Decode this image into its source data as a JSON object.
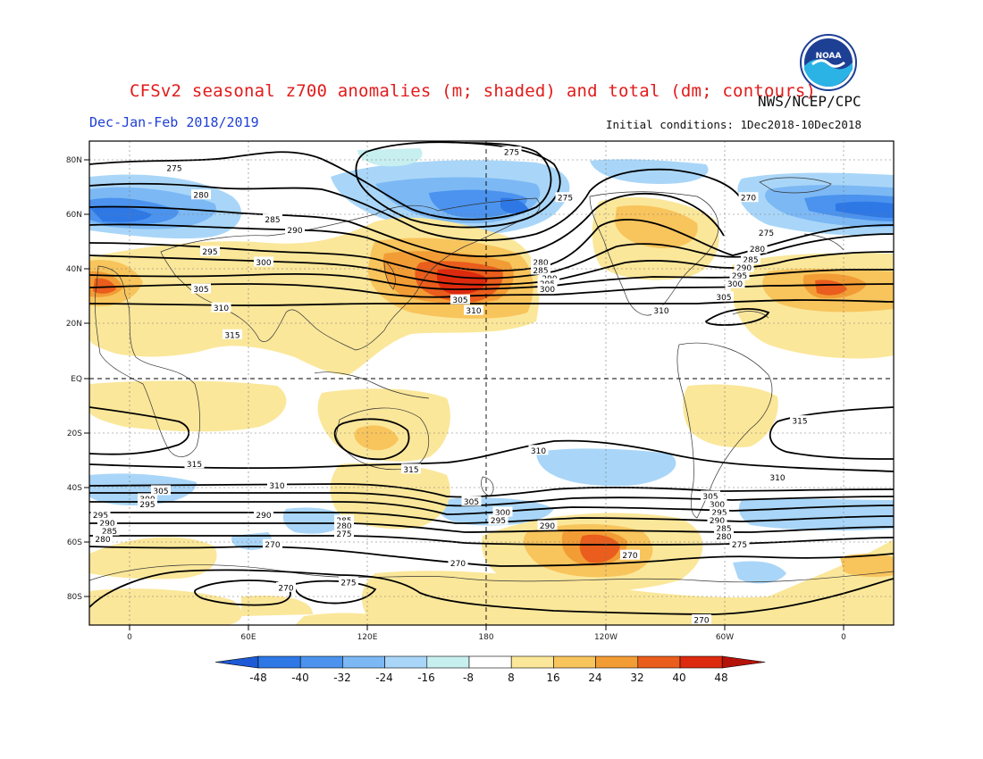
{
  "title": "CFSv2 seasonal z700 anomalies (m; shaded) and total (dm; contours)",
  "season": "Dec-Jan-Feb 2018/2019",
  "agency": "NWS/NCEP/CPC",
  "initial_conditions": "Initial conditions: 1Dec2018-10Dec2018",
  "logo_text": "NOAA",
  "lat_labels": [
    "80N",
    "60N",
    "40N",
    "20N",
    "EQ",
    "20S",
    "40S",
    "60S",
    "80S"
  ],
  "lon_labels": [
    "0",
    "60E",
    "120E",
    "180",
    "120W",
    "60W",
    "0"
  ],
  "colorbar": {
    "ticks": [
      "-48",
      "-40",
      "-32",
      "-24",
      "-16",
      "-8",
      "8",
      "16",
      "24",
      "32",
      "40",
      "48"
    ],
    "colors": [
      "#1e5ad6",
      "#2e78e6",
      "#4b93ee",
      "#7cb8f4",
      "#a9d6f8",
      "#c8efef",
      "#ffffff",
      "#fbe79a",
      "#f8c45c",
      "#f29c35",
      "#ea5d1c",
      "#dd2a0e",
      "#b5120a"
    ]
  },
  "contour_labels": [
    {
      "text": "275",
      "lon": 169,
      "lat": 86
    },
    {
      "text": "275",
      "lon": 18,
      "lat": 80
    },
    {
      "text": "280",
      "lon": 30,
      "lat": 70
    },
    {
      "text": "285",
      "lon": 62,
      "lat": 61
    },
    {
      "text": "290",
      "lon": 72,
      "lat": 57
    },
    {
      "text": "295",
      "lon": 34,
      "lat": 49
    },
    {
      "text": "300",
      "lon": 58,
      "lat": 45
    },
    {
      "text": "305",
      "lon": 30,
      "lat": 35
    },
    {
      "text": "310",
      "lon": 39,
      "lat": 28
    },
    {
      "text": "315",
      "lon": 44,
      "lat": 18
    },
    {
      "text": "275",
      "lon": -167,
      "lat": 69
    },
    {
      "text": "270",
      "lon": -85,
      "lat": 69
    },
    {
      "text": "275",
      "lon": -77,
      "lat": 56
    },
    {
      "text": "280",
      "lon": -81,
      "lat": 50
    },
    {
      "text": "285",
      "lon": -84,
      "lat": 46
    },
    {
      "text": "290",
      "lon": -87,
      "lat": 43
    },
    {
      "text": "295",
      "lon": -89,
      "lat": 40
    },
    {
      "text": "300",
      "lon": -91,
      "lat": 37
    },
    {
      "text": "305",
      "lon": -96,
      "lat": 32
    },
    {
      "text": "310",
      "lon": -124,
      "lat": 27
    },
    {
      "text": "280",
      "lon": -178,
      "lat": 45
    },
    {
      "text": "285",
      "lon": -178,
      "lat": 42
    },
    {
      "text": "290",
      "lon": -174,
      "lat": 39
    },
    {
      "text": "295",
      "lon": -175,
      "lat": 37
    },
    {
      "text": "300",
      "lon": -175,
      "lat": 35
    },
    {
      "text": "305",
      "lon": 146,
      "lat": 31
    },
    {
      "text": "310",
      "lon": 152,
      "lat": 27
    },
    {
      "text": "315",
      "lon": -62,
      "lat": -14
    },
    {
      "text": "310",
      "lon": -179,
      "lat": -25
    },
    {
      "text": "315",
      "lon": 27,
      "lat": -30
    },
    {
      "text": "315",
      "lon": 124,
      "lat": -32
    },
    {
      "text": "310",
      "lon": 64,
      "lat": -38
    },
    {
      "text": "310",
      "lon": -72,
      "lat": -35
    },
    {
      "text": "305",
      "lon": 12,
      "lat": -40
    },
    {
      "text": "300",
      "lon": 6,
      "lat": -43
    },
    {
      "text": "295",
      "lon": 6,
      "lat": -45
    },
    {
      "text": "305",
      "lon": 151,
      "lat": -44
    },
    {
      "text": "300",
      "lon": 165,
      "lat": -48
    },
    {
      "text": "295",
      "lon": 163,
      "lat": -51
    },
    {
      "text": "290",
      "lon": -175,
      "lat": -53
    },
    {
      "text": "305",
      "lon": -102,
      "lat": -42
    },
    {
      "text": "300",
      "lon": -99,
      "lat": -45
    },
    {
      "text": "295",
      "lon": -98,
      "lat": -48
    },
    {
      "text": "290",
      "lon": -99,
      "lat": -51
    },
    {
      "text": "285",
      "lon": -96,
      "lat": -54
    },
    {
      "text": "280",
      "lon": -96,
      "lat": -57
    },
    {
      "text": "275",
      "lon": -89,
      "lat": -60
    },
    {
      "text": "290",
      "lon": 58,
      "lat": -49
    },
    {
      "text": "285",
      "lon": 94,
      "lat": -51
    },
    {
      "text": "280",
      "lon": 94,
      "lat": -53
    },
    {
      "text": "275",
      "lon": 94,
      "lat": -56
    },
    {
      "text": "270",
      "lon": 62,
      "lat": -60
    },
    {
      "text": "295",
      "lon": -15,
      "lat": -49
    },
    {
      "text": "290",
      "lon": -12,
      "lat": -52
    },
    {
      "text": "285",
      "lon": -11,
      "lat": -55
    },
    {
      "text": "280",
      "lon": -14,
      "lat": -58
    },
    {
      "text": "270",
      "lon": 145,
      "lat": -67
    },
    {
      "text": "270",
      "lon": -138,
      "lat": -64
    },
    {
      "text": "270",
      "lon": 68,
      "lat": -76
    },
    {
      "text": "275",
      "lon": 96,
      "lat": -74
    },
    {
      "text": "270",
      "lon": -106,
      "lat": -88
    }
  ]
}
